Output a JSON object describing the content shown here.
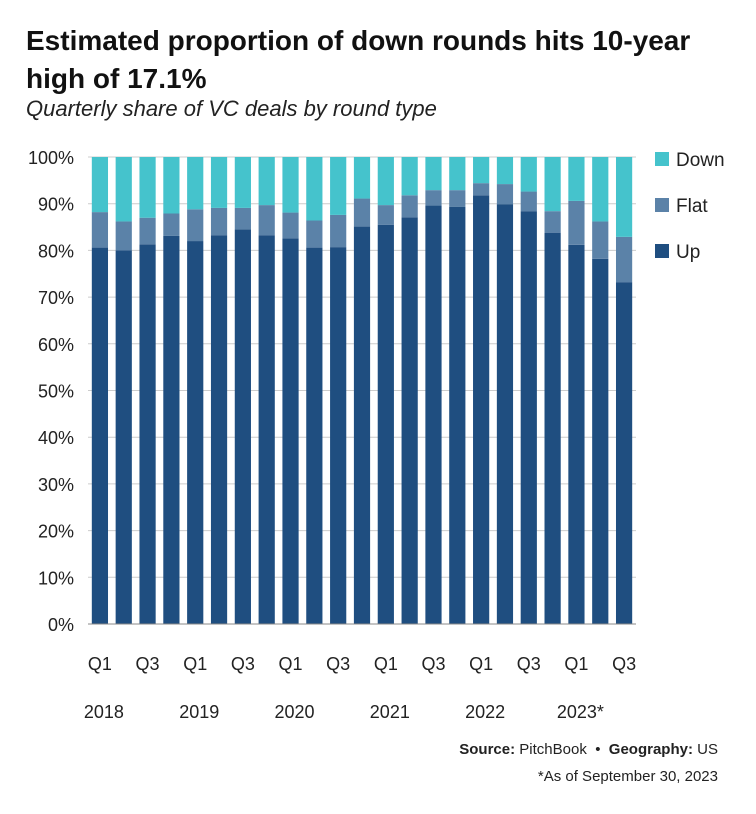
{
  "title": "Estimated proportion of down rounds hits 10-year high of 17.1%",
  "subtitle": "Quarterly share of VC deals by round type",
  "source": {
    "source_label": "Source:",
    "source_value": "PitchBook",
    "separator": "•",
    "geo_label": "Geography:",
    "geo_value": "US"
  },
  "footnote": "*As of September 30, 2023",
  "colors": {
    "Up": "#1f4e80",
    "Flat": "#5b82a8",
    "Down": "#45c3cc",
    "grid": "#cccccc",
    "axis": "#888888"
  },
  "chart_data": {
    "type": "bar",
    "stacked": true,
    "categories": [
      "2018 Q1",
      "2018 Q2",
      "2018 Q3",
      "2018 Q4",
      "2019 Q1",
      "2019 Q2",
      "2019 Q3",
      "2019 Q4",
      "2020 Q1",
      "2020 Q2",
      "2020 Q3",
      "2020 Q4",
      "2021 Q1",
      "2021 Q2",
      "2021 Q3",
      "2021 Q4",
      "2022 Q1",
      "2022 Q2",
      "2022 Q3",
      "2022 Q4",
      "2023 Q1",
      "2023 Q2",
      "2023 Q3"
    ],
    "x_tick_labels": [
      "Q1",
      "",
      "Q3",
      "",
      "Q1",
      "",
      "Q3",
      "",
      "Q1",
      "",
      "Q3",
      "",
      "Q1",
      "",
      "Q3",
      "",
      "Q1",
      "",
      "Q3",
      "",
      "Q1",
      "",
      "Q3"
    ],
    "year_labels": [
      "2018",
      "",
      "",
      "",
      "2019",
      "",
      "",
      "",
      "2020",
      "",
      "",
      "",
      "2021",
      "",
      "",
      "",
      "2022",
      "",
      "",
      "",
      "2023*",
      "",
      ""
    ],
    "series": [
      {
        "name": "Up",
        "values": [
          80.6,
          80.0,
          81.3,
          83.1,
          82.0,
          83.2,
          84.5,
          83.2,
          82.6,
          80.6,
          80.7,
          85.1,
          85.5,
          87.1,
          89.6,
          89.3,
          91.8,
          89.9,
          88.4,
          83.8,
          81.2,
          78.2,
          73.2
        ]
      },
      {
        "name": "Flat",
        "values": [
          7.6,
          6.2,
          5.7,
          4.8,
          6.8,
          5.9,
          4.6,
          6.5,
          5.5,
          5.8,
          6.9,
          6.0,
          4.2,
          4.7,
          3.3,
          3.6,
          2.6,
          4.3,
          4.2,
          4.6,
          9.4,
          8.0,
          9.7
        ]
      },
      {
        "name": "Down",
        "values": [
          11.8,
          13.8,
          13.0,
          12.1,
          11.2,
          10.9,
          10.9,
          10.3,
          11.9,
          13.6,
          12.4,
          8.9,
          10.3,
          8.2,
          7.1,
          7.1,
          5.6,
          5.8,
          7.4,
          11.6,
          9.4,
          13.8,
          17.1
        ]
      }
    ],
    "ylim": [
      0,
      100
    ],
    "yticks": [
      0,
      10,
      20,
      30,
      40,
      50,
      60,
      70,
      80,
      90,
      100
    ],
    "ytick_labels": [
      "0%",
      "10%",
      "20%",
      "30%",
      "40%",
      "50%",
      "60%",
      "70%",
      "80%",
      "90%",
      "100%"
    ],
    "legend": {
      "position": "right",
      "order": [
        "Down",
        "Flat",
        "Up"
      ]
    },
    "grid": true
  }
}
